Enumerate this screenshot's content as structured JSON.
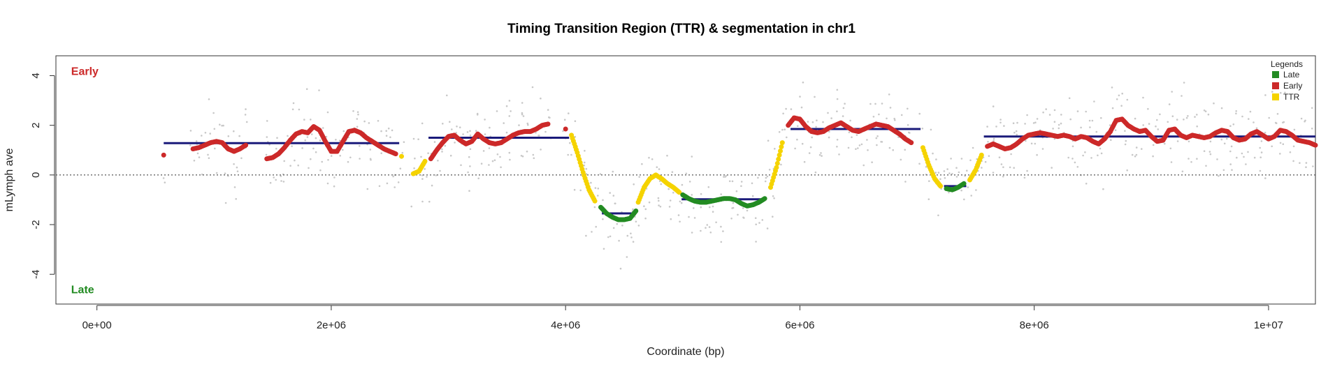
{
  "chart_data": {
    "type": "scatter",
    "title": "Timing Transition Region (TTR) & segmentation in chr1",
    "xlabel": "Coordinate (bp)",
    "ylabel": "mLymph ave",
    "xlim": [
      -350000,
      10400000
    ],
    "ylim": [
      -5.2,
      4.8
    ],
    "x_ticks": [
      0,
      2000000,
      4000000,
      6000000,
      8000000,
      10000000
    ],
    "x_tick_labels": [
      "0e+00",
      "2e+06",
      "4e+06",
      "6e+06",
      "8e+06",
      "1e+07"
    ],
    "y_ticks": [
      -4,
      -2,
      0,
      2,
      4
    ],
    "y_tick_labels": [
      "-4",
      "-2",
      "0",
      "2",
      "4"
    ],
    "reference_line_y": 0,
    "annotations": [
      {
        "text": "Early",
        "x": -220000,
        "y": 4.2,
        "color": "#cc2929"
      },
      {
        "text": "Late",
        "x": -220000,
        "y": -4.6,
        "color": "#228b22"
      }
    ],
    "legend": {
      "title": "Legends",
      "position": "top-right",
      "entries": [
        {
          "label": "Late",
          "color": "#228b22"
        },
        {
          "label": "Early",
          "color": "#cc2929"
        },
        {
          "label": "TTR",
          "color": "#f5d300"
        }
      ]
    },
    "colors": {
      "late": "#228b22",
      "early": "#cc2929",
      "ttr": "#f5d300",
      "segment": "#1a1a7a",
      "raw": "#c8c8c8"
    },
    "segments": [
      {
        "x0": 570000,
        "x1": 2580000,
        "y": 1.28
      },
      {
        "x0": 2830000,
        "x1": 4030000,
        "y": 1.5
      },
      {
        "x0": 4310000,
        "x1": 4600000,
        "y": -1.55
      },
      {
        "x0": 4990000,
        "x1": 5700000,
        "y": -0.98
      },
      {
        "x0": 5920000,
        "x1": 7030000,
        "y": 1.85
      },
      {
        "x0": 7230000,
        "x1": 7420000,
        "y": -0.45
      },
      {
        "x0": 7570000,
        "x1": 10400000,
        "y": 1.55
      }
    ],
    "series": [
      {
        "name": "Early",
        "x": [
          570000,
          820000,
          870000,
          920000,
          970000,
          1020000,
          1070000,
          1120000,
          1170000,
          1220000,
          1270000,
          1450000,
          1500000,
          1550000,
          1600000,
          1650000,
          1700000,
          1750000,
          1800000,
          1850000,
          1900000,
          1950000,
          2000000,
          2050000,
          2100000,
          2150000,
          2200000,
          2250000,
          2300000,
          2350000,
          2400000,
          2450000,
          2500000,
          2550000,
          2850000,
          2900000,
          2950000,
          3000000,
          3050000,
          3100000,
          3150000,
          3200000,
          3250000,
          3300000,
          3350000,
          3400000,
          3450000,
          3500000,
          3550000,
          3600000,
          3650000,
          3700000,
          3750000,
          3800000,
          3850000,
          4000000,
          5900000,
          5950000,
          6000000,
          6050000,
          6100000,
          6150000,
          6200000,
          6250000,
          6300000,
          6350000,
          6400000,
          6450000,
          6500000,
          6550000,
          6600000,
          6650000,
          6700000,
          6750000,
          6800000,
          6850000,
          6900000,
          6950000,
          7600000,
          7650000,
          7700000,
          7750000,
          7800000,
          7850000,
          7900000,
          7950000,
          8000000,
          8050000,
          8100000,
          8150000,
          8200000,
          8250000,
          8300000,
          8350000,
          8400000,
          8450000,
          8500000,
          8550000,
          8600000,
          8650000,
          8700000,
          8750000,
          8800000,
          8850000,
          8900000,
          8950000,
          9000000,
          9050000,
          9100000,
          9150000,
          9200000,
          9250000,
          9300000,
          9350000,
          9400000,
          9450000,
          9500000,
          9550000,
          9600000,
          9650000,
          9700000,
          9750000,
          9800000,
          9850000,
          9900000,
          9950000,
          10000000,
          10050000,
          10100000,
          10150000,
          10200000,
          10250000,
          10300000,
          10350000,
          10400000
        ],
        "y": [
          0.8,
          1.05,
          1.1,
          1.2,
          1.3,
          1.35,
          1.3,
          1.05,
          0.95,
          1.05,
          1.2,
          0.65,
          0.7,
          0.85,
          1.1,
          1.4,
          1.65,
          1.75,
          1.7,
          1.95,
          1.8,
          1.35,
          0.95,
          0.95,
          1.35,
          1.75,
          1.8,
          1.7,
          1.5,
          1.35,
          1.2,
          1.05,
          0.95,
          0.85,
          0.65,
          1.0,
          1.3,
          1.55,
          1.6,
          1.4,
          1.25,
          1.35,
          1.65,
          1.45,
          1.3,
          1.25,
          1.3,
          1.45,
          1.6,
          1.7,
          1.75,
          1.75,
          1.85,
          2.0,
          2.05,
          1.85,
          2.0,
          2.3,
          2.25,
          1.95,
          1.75,
          1.7,
          1.75,
          1.9,
          2.0,
          2.1,
          1.95,
          1.8,
          1.75,
          1.85,
          1.95,
          2.05,
          2.0,
          1.95,
          1.8,
          1.65,
          1.45,
          1.3,
          1.15,
          1.25,
          1.15,
          1.05,
          1.1,
          1.25,
          1.45,
          1.6,
          1.65,
          1.7,
          1.65,
          1.6,
          1.55,
          1.6,
          1.55,
          1.45,
          1.55,
          1.5,
          1.35,
          1.25,
          1.45,
          1.75,
          2.2,
          2.25,
          2.0,
          1.85,
          1.75,
          1.8,
          1.55,
          1.35,
          1.4,
          1.8,
          1.85,
          1.6,
          1.5,
          1.6,
          1.55,
          1.5,
          1.55,
          1.7,
          1.8,
          1.75,
          1.5,
          1.4,
          1.45,
          1.65,
          1.75,
          1.6,
          1.45,
          1.55,
          1.8,
          1.75,
          1.6,
          1.4,
          1.35,
          1.3,
          1.2
        ]
      },
      {
        "name": "TTR",
        "x": [
          2600000,
          2700000,
          2750000,
          2800000,
          4050000,
          4100000,
          4150000,
          4200000,
          4250000,
          4620000,
          4670000,
          4720000,
          4770000,
          4820000,
          4870000,
          4920000,
          4970000,
          5750000,
          5800000,
          5850000,
          7050000,
          7100000,
          7150000,
          7200000,
          7450000,
          7500000,
          7550000
        ],
        "y": [
          0.75,
          0.05,
          0.15,
          0.55,
          1.6,
          0.9,
          0.1,
          -0.6,
          -1.05,
          -1.1,
          -0.5,
          -0.15,
          0.0,
          -0.15,
          -0.35,
          -0.5,
          -0.7,
          -0.5,
          0.3,
          1.3,
          1.1,
          0.4,
          -0.15,
          -0.45,
          -0.2,
          0.2,
          0.8
        ]
      },
      {
        "name": "Late",
        "x": [
          4300000,
          4350000,
          4400000,
          4450000,
          4500000,
          4550000,
          4600000,
          5000000,
          5050000,
          5100000,
          5150000,
          5200000,
          5250000,
          5300000,
          5350000,
          5400000,
          5450000,
          5500000,
          5550000,
          5600000,
          5650000,
          5700000,
          7250000,
          7300000,
          7350000,
          7400000
        ],
        "y": [
          -1.3,
          -1.55,
          -1.7,
          -1.8,
          -1.8,
          -1.75,
          -1.45,
          -0.8,
          -0.95,
          -1.05,
          -1.1,
          -1.1,
          -1.05,
          -1.0,
          -0.95,
          -0.95,
          -1.0,
          -1.15,
          -1.25,
          -1.2,
          -1.1,
          -0.95,
          -0.55,
          -0.6,
          -0.5,
          -0.35
        ]
      }
    ]
  }
}
